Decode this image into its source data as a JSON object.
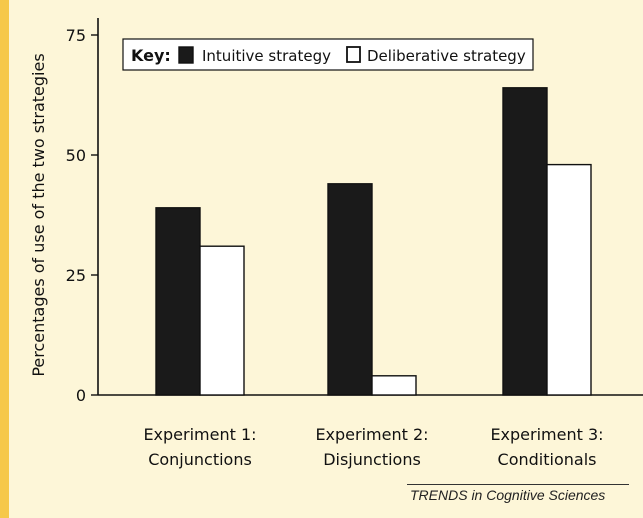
{
  "chart_data": {
    "type": "bar",
    "ylabel": "Percentages of use of the two strategies",
    "ylim": [
      0,
      75
    ],
    "yticks": [
      "0",
      "25",
      "50",
      "75"
    ],
    "categories": [
      [
        "Experiment 1:",
        "Conjunctions"
      ],
      [
        "Experiment 2:",
        "Disjunctions"
      ],
      [
        "Experiment 3:",
        "Conditionals"
      ]
    ],
    "series": [
      {
        "name": "Intuitive strategy",
        "values": [
          39,
          44,
          64
        ],
        "color": "#1a1a1a"
      },
      {
        "name": "Deliberative strategy",
        "values": [
          31,
          4,
          48
        ],
        "color": "#ffffff"
      }
    ],
    "legend": {
      "title": "Key:",
      "position": "top"
    }
  },
  "credit": "TRENDS in Cognitive Sciences"
}
